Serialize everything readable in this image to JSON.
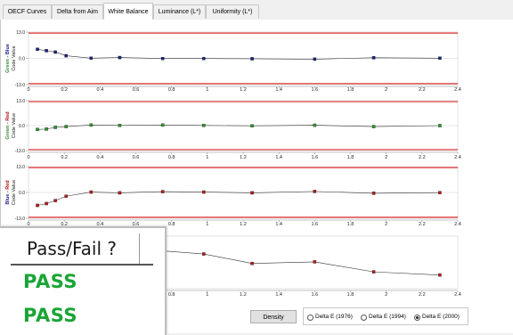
{
  "tabs": [
    {
      "label": "OECF Curves",
      "active": false
    },
    {
      "label": "Delta from Aim",
      "active": false
    },
    {
      "label": "White Balance",
      "active": true
    },
    {
      "label": "Luminance (L*)",
      "active": false
    },
    {
      "label": "Uniformity (L*)",
      "active": false
    }
  ],
  "overlay": {
    "header": "Pass/Fail ?",
    "values": [
      "PASS",
      "PASS"
    ],
    "pass_color": "#1aa535"
  },
  "density_button": "Density",
  "delta_options": [
    {
      "label": "Delta E (1976)",
      "selected": false
    },
    {
      "label": "Delta E (1994)",
      "selected": false
    },
    {
      "label": "Delta E (2000)",
      "selected": true
    }
  ],
  "colors": {
    "limit_line": "#e03030",
    "green": "#2e8b2e",
    "blue": "#1c1c8c",
    "red": "#b01010",
    "navy_point": "#1a237e",
    "green_point": "#2a9a2a",
    "red_point": "#b71c1c"
  },
  "chart_data": [
    {
      "type": "line",
      "ylabel_top": "Green - Blue",
      "ylabel_colors": [
        "green",
        "blue"
      ],
      "ylabel_bottom": "Code Value",
      "yticks": [
        "13.0",
        "0.0",
        "-13.0"
      ],
      "ylim": [
        -13,
        13
      ],
      "limits": [
        12.5,
        -12.5
      ],
      "xticks": [
        "0",
        "0.2",
        "0.4",
        "0.6",
        "0.8",
        "1",
        "1.2",
        "1.4",
        "1.6",
        "1.8",
        "2",
        "2.2",
        "2.4"
      ],
      "xlim": [
        0,
        2.4
      ],
      "x": [
        0.05,
        0.1,
        0.15,
        0.21,
        0.35,
        0.51,
        0.75,
        0.98,
        1.25,
        1.6,
        1.93,
        2.3
      ],
      "y": [
        4.5,
        3.8,
        3.1,
        1.3,
        0.1,
        0.4,
        -0.1,
        -0.1,
        -0.2,
        -0.4,
        0.3,
        0.1
      ],
      "point_color": "navy"
    },
    {
      "type": "line",
      "ylabel_top": "Green - Red",
      "ylabel_colors": [
        "green",
        "red"
      ],
      "ylabel_bottom": "Code Value",
      "yticks": [
        "13.0",
        "0.0",
        "-13.0"
      ],
      "ylim": [
        -13,
        13
      ],
      "limits": [
        12.5,
        -12.5
      ],
      "xticks": [
        "0",
        "0.2",
        "0.4",
        "0.6",
        "0.8",
        "1",
        "1.2",
        "1.4",
        "1.6",
        "1.8",
        "2",
        "2.2",
        "2.4"
      ],
      "xlim": [
        0,
        2.4
      ],
      "x": [
        0.05,
        0.1,
        0.15,
        0.21,
        0.35,
        0.51,
        0.75,
        0.98,
        1.25,
        1.6,
        1.93,
        2.3
      ],
      "y": [
        -2.0,
        -1.8,
        -0.9,
        -0.5,
        0.3,
        0.1,
        0.3,
        0.1,
        -0.1,
        0.2,
        -0.5,
        0.0
      ],
      "point_color": "green"
    },
    {
      "type": "line",
      "ylabel_top": "Blue - Red",
      "ylabel_colors": [
        "blue",
        "red"
      ],
      "ylabel_bottom": "Code Value",
      "yticks": [
        "13.0",
        "0.0",
        "-13.0"
      ],
      "ylim": [
        -13,
        13
      ],
      "limits": [
        12.5,
        -12.5
      ],
      "xticks": [
        "0",
        "0.2",
        "0.4",
        "0.6",
        "0.8",
        "1",
        "1.2",
        "1.4",
        "1.6",
        "1.8",
        "2",
        "2.2",
        "2.4"
      ],
      "xlim": [
        0,
        2.4
      ],
      "x": [
        0.05,
        0.1,
        0.15,
        0.21,
        0.35,
        0.51,
        0.75,
        0.98,
        1.25,
        1.6,
        1.93,
        2.3
      ],
      "y": [
        -6.5,
        -5.6,
        -4.1,
        -1.9,
        0.2,
        -0.2,
        0.4,
        0.2,
        -0.2,
        0.5,
        -0.4,
        -0.1
      ],
      "point_color": "red"
    },
    {
      "type": "line",
      "xticks": [
        "0.6",
        "0.8",
        "1",
        "1.2",
        "1.4",
        "1.6",
        "1.8",
        "2",
        "2.2",
        "2.4"
      ],
      "xlim": [
        0,
        2.4
      ],
      "ylim": [
        0,
        10
      ],
      "x": [
        0.55,
        0.75,
        0.98,
        1.25,
        1.6,
        1.93,
        2.3
      ],
      "y": [
        8.0,
        7.2,
        6.6,
        4.8,
        5.1,
        3.2,
        2.6
      ],
      "point_color": "red"
    }
  ]
}
